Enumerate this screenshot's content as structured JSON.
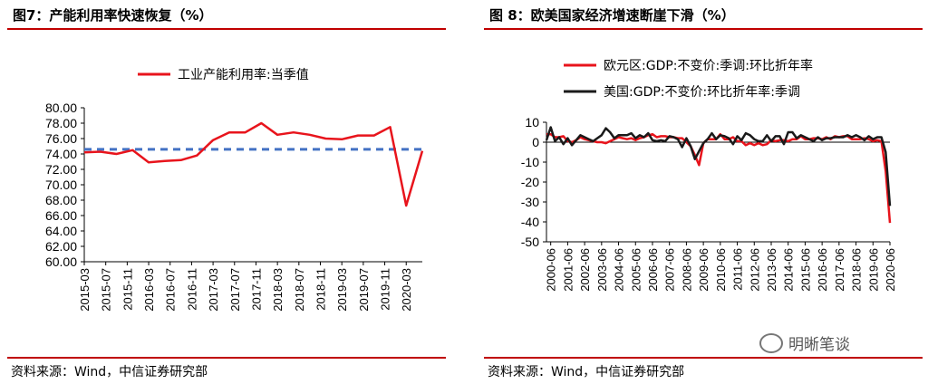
{
  "left_panel": {
    "title": "图7：产能利用率快速恢复（%）",
    "source": "资料来源：Wind，中信证券研究部"
  },
  "right_panel": {
    "title": "图 8：欧美国家经济增速断崖下滑（%）",
    "source": "资料来源：Wind，中信证券研究部"
  },
  "watermark": {
    "text": "明晰笔谈",
    "icon": "wechat-icon"
  },
  "colors": {
    "accent": "#c00000",
    "red_series": "#e8141c",
    "black_series": "#1a1a1a",
    "ref_line": "#4472c4"
  },
  "chart_data": [
    {
      "type": "line",
      "title": "",
      "xlabel": "",
      "ylabel": "",
      "ylim": [
        60,
        80
      ],
      "yticks": [
        "60.00",
        "62.00",
        "64.00",
        "66.00",
        "68.00",
        "70.00",
        "72.00",
        "74.00",
        "76.00",
        "78.00",
        "80.00"
      ],
      "x_tick_labels": [
        "2015-03",
        "2015-07",
        "2015-11",
        "2016-03",
        "2016-07",
        "2016-11",
        "2017-03",
        "2017-07",
        "2017-11",
        "2018-03",
        "2018-07",
        "2018-11",
        "2019-03",
        "2019-07",
        "2019-11",
        "2020-03"
      ],
      "legend_position": "top-center",
      "series": [
        {
          "name": "工业产能利用率:当季值",
          "color": "#e8141c",
          "x": [
            "2015-03",
            "2015-06",
            "2015-09",
            "2015-12",
            "2016-03",
            "2016-06",
            "2016-09",
            "2016-12",
            "2017-03",
            "2017-06",
            "2017-09",
            "2017-12",
            "2018-03",
            "2018-06",
            "2018-09",
            "2018-12",
            "2019-03",
            "2019-06",
            "2019-09",
            "2019-12",
            "2020-03",
            "2020-06"
          ],
          "values": [
            74.2,
            74.3,
            74.0,
            74.5,
            72.9,
            73.1,
            73.2,
            73.8,
            75.8,
            76.8,
            76.8,
            78.0,
            76.5,
            76.8,
            76.5,
            76.0,
            75.9,
            76.4,
            76.4,
            77.5,
            67.3,
            74.4
          ]
        },
        {
          "name": "",
          "style": "dashed",
          "color": "#4472c4",
          "x": [
            "2015-03",
            "2020-06"
          ],
          "values": [
            74.6,
            74.6
          ]
        }
      ]
    },
    {
      "type": "line",
      "title": "",
      "xlabel": "",
      "ylabel": "",
      "ylim": [
        -50,
        10
      ],
      "yticks": [
        "-50",
        "-40",
        "-30",
        "-20",
        "-10",
        "0",
        "10"
      ],
      "x_tick_labels": [
        "2000-06",
        "2001-06",
        "2002-06",
        "2003-06",
        "2004-06",
        "2005-06",
        "2006-06",
        "2007-06",
        "2008-06",
        "2009-06",
        "2010-06",
        "2011-06",
        "2012-06",
        "2013-06",
        "2014-06",
        "2015-06",
        "2016-06",
        "2017-06",
        "2018-06",
        "2019-06",
        "2020-06"
      ],
      "legend_position": "top-left",
      "series": [
        {
          "name": "欧元区:GDP:不变价:季调:环比折年率",
          "color": "#e8141c",
          "x_start": "2000-03",
          "step": "quarter",
          "values": [
            4.0,
            4.0,
            2.5,
            2.5,
            3.0,
            0.5,
            0.0,
            1.0,
            2.5,
            1.5,
            1.0,
            0.5,
            0.0,
            0.0,
            -0.5,
            0.5,
            1.5,
            2.5,
            2.0,
            1.5,
            2.0,
            1.0,
            2.0,
            2.5,
            3.5,
            4.0,
            2.5,
            3.0,
            3.0,
            2.5,
            2.5,
            2.0,
            2.0,
            0.0,
            -2.0,
            -6.5,
            -11.5,
            -0.5,
            1.5,
            1.5,
            1.5,
            4.0,
            1.5,
            1.5,
            2.5,
            0.5,
            0.5,
            -1.5,
            -0.5,
            -1.5,
            -0.5,
            -1.5,
            -1.0,
            1.0,
            0.5,
            1.0,
            1.0,
            0.5,
            1.5,
            1.5,
            3.0,
            1.5,
            1.5,
            2.0,
            2.0,
            1.5,
            2.5,
            1.5,
            3.0,
            2.5,
            3.0,
            3.0,
            1.5,
            1.5,
            1.5,
            2.0,
            1.5,
            0.5,
            1.0,
            0.5,
            -14.5,
            -40.5
          ]
        },
        {
          "name": "美国:GDP:不变价:环比折年率:季调",
          "color": "#1a1a1a",
          "x_start": "2000-03",
          "step": "quarter",
          "values": [
            1.0,
            7.5,
            0.5,
            2.5,
            -1.0,
            2.0,
            -1.5,
            1.0,
            3.5,
            2.5,
            1.5,
            0.5,
            2.0,
            3.5,
            7.0,
            5.0,
            2.0,
            3.5,
            3.5,
            3.5,
            4.5,
            2.0,
            3.5,
            2.5,
            4.5,
            1.0,
            0.5,
            1.0,
            0.5,
            3.0,
            2.5,
            1.5,
            -2.5,
            2.0,
            -2.0,
            -8.5,
            -4.5,
            -0.5,
            1.5,
            4.5,
            1.5,
            3.5,
            3.0,
            2.0,
            -1.0,
            3.0,
            1.0,
            4.5,
            3.5,
            1.5,
            0.5,
            0.5,
            3.5,
            0.5,
            3.0,
            3.0,
            -1.0,
            5.0,
            5.0,
            2.0,
            3.5,
            2.5,
            1.5,
            0.5,
            2.5,
            1.0,
            2.0,
            2.0,
            2.5,
            2.5,
            2.5,
            3.5,
            2.5,
            3.5,
            2.5,
            1.0,
            3.0,
            1.5,
            2.5,
            2.5,
            -5.0,
            -32.0
          ]
        }
      ]
    }
  ]
}
